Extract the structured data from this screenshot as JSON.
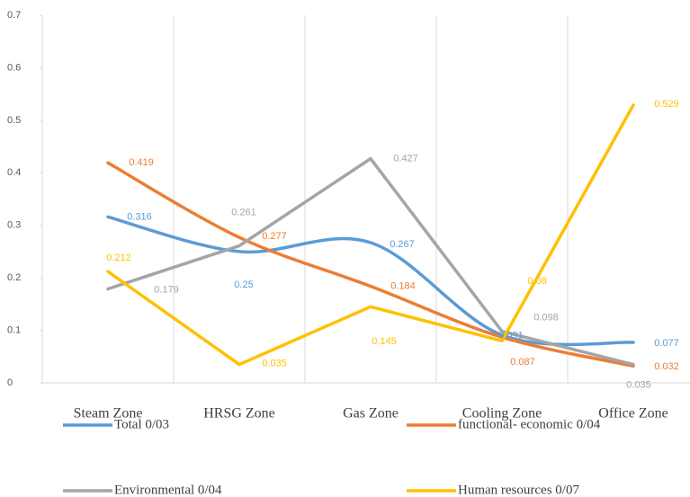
{
  "chart_data": {
    "type": "line",
    "categories": [
      "Steam Zone",
      "HRSG Zone",
      "Gas Zone",
      "Cooling Zone",
      "Office Zone"
    ],
    "series": [
      {
        "name": "Total 0/03",
        "color": "#5B9BD5",
        "smooth": true,
        "values": [
          0.316,
          0.25,
          0.267,
          0.091,
          0.077
        ]
      },
      {
        "name": "functional- economic 0/04",
        "color": "#ED7D31",
        "smooth": true,
        "values": [
          0.419,
          0.277,
          0.184,
          0.087,
          0.032
        ]
      },
      {
        "name": "Environmental 0/04",
        "color": "#A5A5A5",
        "smooth": false,
        "values": [
          0.179,
          0.261,
          0.427,
          0.098,
          0.035
        ]
      },
      {
        "name": "Human resources 0/07",
        "color": "#FFC000",
        "smooth": false,
        "values": [
          0.212,
          0.035,
          0.145,
          0.08,
          0.529
        ]
      }
    ],
    "ylim": [
      0,
      0.7
    ],
    "yticks": [
      0,
      0.1,
      0.2,
      0.3,
      0.4,
      0.5,
      0.6,
      0.7
    ],
    "data_labels": true,
    "legend": "bottom"
  }
}
